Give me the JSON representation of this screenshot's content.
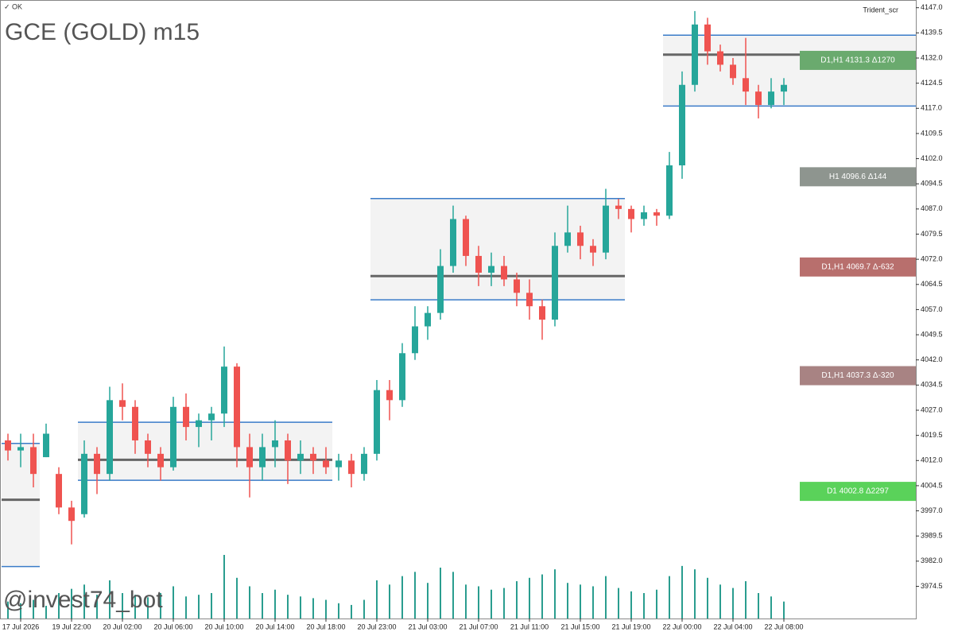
{
  "chart_data": {
    "type": "candlestick",
    "title": "GCE (GOLD)  m15",
    "status": "✓ OK",
    "indicator": "Trident_scr",
    "watermark": "@invest74_bot",
    "categories": [
      null,
      "17 Jul 2026",
      null,
      null,
      null,
      "19 Jul 22:00",
      null,
      null,
      null,
      "20 Jul 02:00",
      null,
      null,
      null,
      "20 Jul 06:00",
      null,
      null,
      null,
      "20 Jul 10:00",
      null,
      null,
      null,
      "20 Jul 14:00",
      null,
      null,
      null,
      "20 Jul 18:00",
      null,
      null,
      null,
      "20 Jul 23:00",
      null,
      null,
      null,
      "21 Jul 03:00",
      null,
      null,
      null,
      "21 Jul 07:00",
      null,
      null,
      null,
      "21 Jul 11:00",
      null,
      null,
      null,
      "21 Jul 15:00",
      null,
      null,
      null,
      "21 Jul 19:00",
      null,
      null,
      null,
      "22 Jul 00:00",
      null,
      null,
      null,
      "22 Jul 04:00",
      null,
      null,
      null,
      "22 Jul 08:00"
    ],
    "open": [
      4018,
      4015,
      4016,
      4013,
      4008,
      3998,
      3996,
      4014,
      4008,
      4030,
      4028,
      4018,
      4014,
      4010,
      4028,
      4022,
      4024,
      4026,
      4040,
      4016,
      4010,
      4016,
      4018,
      4012,
      4014,
      4012,
      4010,
      4012,
      4008,
      4014,
      4033,
      4030,
      4044,
      4052,
      4056,
      4070,
      4084,
      4073,
      4068,
      4070,
      4066,
      4062,
      4058,
      4054,
      4076,
      4080,
      4076,
      4074,
      4088,
      4087,
      4084,
      4086,
      4085,
      4100,
      4124,
      4142,
      4134,
      4130,
      4126,
      4122,
      4118,
      4122
    ],
    "high": [
      4020,
      4020,
      4020,
      4023,
      4010,
      4000,
      4018,
      4016,
      4034,
      4035,
      4030,
      4020,
      4016,
      4031,
      4032,
      4026,
      4028,
      4046,
      4041,
      4020,
      4020,
      4024,
      4020,
      4018,
      4016,
      4016,
      4014,
      4014,
      4016,
      4036,
      4036,
      4047,
      4058,
      4058,
      4075,
      4088,
      4085,
      4076,
      4074,
      4073,
      4068,
      4066,
      4060,
      4080,
      4088,
      4082,
      4078,
      4093,
      4090,
      4088,
      4088,
      4087,
      4104,
      4128,
      4146,
      4144,
      4136,
      4132,
      4138,
      4124,
      4126,
      4126
    ],
    "low": [
      4012,
      4010,
      4004,
      4013,
      3996,
      3987,
      3995,
      4002,
      4006,
      4024,
      4014,
      4010,
      4006,
      4009,
      4018,
      4016,
      4018,
      4022,
      4010,
      4001,
      4006,
      4010,
      4005,
      4008,
      4008,
      4008,
      4006,
      4004,
      4006,
      4012,
      4024,
      4028,
      4042,
      4048,
      4054,
      4068,
      4070,
      4064,
      4064,
      4064,
      4058,
      4054,
      4048,
      4052,
      4074,
      4072,
      4070,
      4072,
      4084,
      4080,
      4082,
      4082,
      4084,
      4096,
      4122,
      4130,
      4128,
      4124,
      4118,
      4114,
      4117,
      4118
    ],
    "close": [
      4015,
      4016,
      4008,
      4020,
      3998,
      3994,
      4014,
      4008,
      4030,
      4028,
      4018,
      4014,
      4010,
      4028,
      4022,
      4024,
      4026,
      4040,
      4016,
      4010,
      4016,
      4018,
      4012,
      4014,
      4012,
      4010,
      4012,
      4008,
      4014,
      4033,
      4030,
      4044,
      4052,
      4056,
      4070,
      4084,
      4073,
      4068,
      4070,
      4066,
      4062,
      4058,
      4054,
      4076,
      4080,
      4076,
      4074,
      4088,
      4087,
      4084,
      4086,
      4085,
      4100,
      4124,
      4142,
      4134,
      4130,
      4126,
      4122,
      4118,
      4122,
      4124
    ],
    "volume": [
      20,
      18,
      22,
      15,
      30,
      35,
      40,
      28,
      45,
      30,
      28,
      25,
      30,
      38,
      26,
      28,
      30,
      75,
      48,
      38,
      30,
      34,
      28,
      26,
      24,
      22,
      18,
      16,
      22,
      45,
      40,
      50,
      55,
      42,
      60,
      55,
      40,
      38,
      34,
      36,
      44,
      48,
      52,
      58,
      42,
      40,
      38,
      50,
      36,
      32,
      30,
      34,
      50,
      62,
      58,
      48,
      40,
      36,
      44,
      30,
      26,
      20
    ],
    "up_color": "#26a69a",
    "down_color": "#ef5350",
    "ylim": [
      3964.9,
      4149.3
    ],
    "yticks": [
      3974.5,
      {
        "value": 3982,
        "label": "3982.0"
      },
      3989.5,
      {
        "value": 3997,
        "label": "3997.0"
      },
      4004.5,
      {
        "value": 4012,
        "label": "4012.0"
      },
      4019.5,
      {
        "value": 4027,
        "label": "4027.0"
      },
      4034.5,
      {
        "value": 4042,
        "label": "4042.0"
      },
      4049.5,
      {
        "value": 4057,
        "label": "4057.0"
      },
      4064.5,
      {
        "value": 4072,
        "label": "4072.0"
      },
      4079.5,
      {
        "value": 4087,
        "label": "4087.0"
      },
      4094.5,
      {
        "value": 4102,
        "label": "4102.0"
      },
      4109.5,
      {
        "value": 4117,
        "label": "4117.0"
      },
      4124.5,
      {
        "value": 4132,
        "label": "4132.0"
      },
      4139.5,
      {
        "value": 4147,
        "label": "4147.0"
      }
    ],
    "zones": [
      {
        "start": 0,
        "end": 3,
        "high": 4017.1,
        "mid": 4000.3,
        "low": 3980.4
      },
      {
        "start": 6,
        "end": 26,
        "high": 4023.4,
        "mid": 4012.2,
        "low": 4006.1
      },
      {
        "start": 29,
        "end": 49,
        "high": 4090.1,
        "mid": 4067.0,
        "low": 4059.9
      },
      {
        "start": 52,
        "end": 72,
        "high": 4138.8,
        "mid": 4133.0,
        "low": 4117.7
      }
    ],
    "levels": [
      {
        "label": "D1,H1 4131.3 Δ1270",
        "price": 4131.3,
        "color": "#6aaa6e"
      },
      {
        "label": "H1 4096.6 Δ144",
        "price": 4096.6,
        "color": "#8e958f"
      },
      {
        "label": "D1,H1 4069.7 Δ-632",
        "price": 4069.7,
        "color": "#b86f6d"
      },
      {
        "label": "D1,H1 4037.3 Δ-320",
        "price": 4037.3,
        "color": "#a88383"
      },
      {
        "label": "D1 4002.8 Δ2297",
        "price": 4002.8,
        "color": "#5ad25a"
      }
    ]
  }
}
